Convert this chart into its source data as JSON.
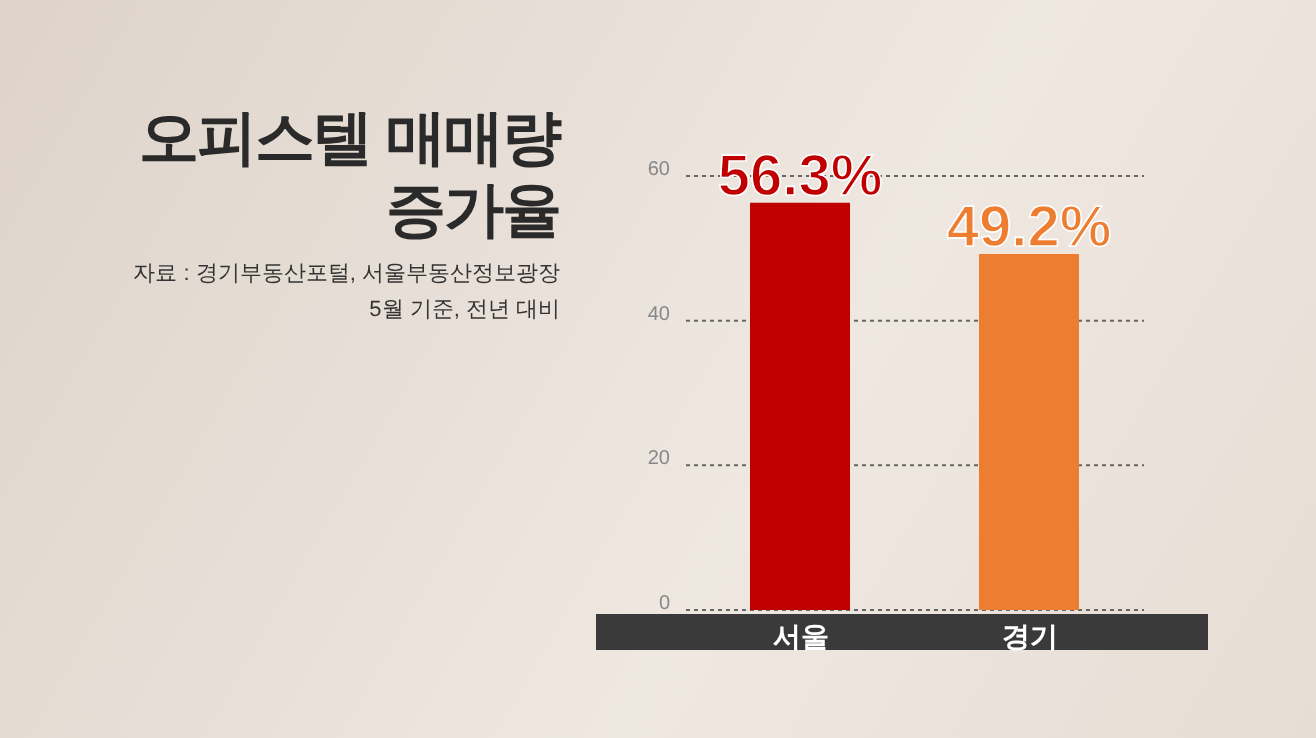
{
  "chart_data": {
    "type": "bar",
    "title": "오피스텔 매매량\n증가율",
    "annotations": [
      "자료 : 경기부동산포털, 서울부동산정보광장",
      "5월 기준, 전년 대비"
    ],
    "categories": [
      "서울",
      "경기"
    ],
    "values": [
      56.3,
      49.2
    ],
    "colors": [
      "#c00000",
      "#ed7d31"
    ],
    "value_labels": [
      "56.3%",
      "49.2%"
    ],
    "ylim": [
      0,
      60
    ],
    "yticks": [
      0,
      20,
      40,
      60
    ],
    "grid": "y"
  }
}
